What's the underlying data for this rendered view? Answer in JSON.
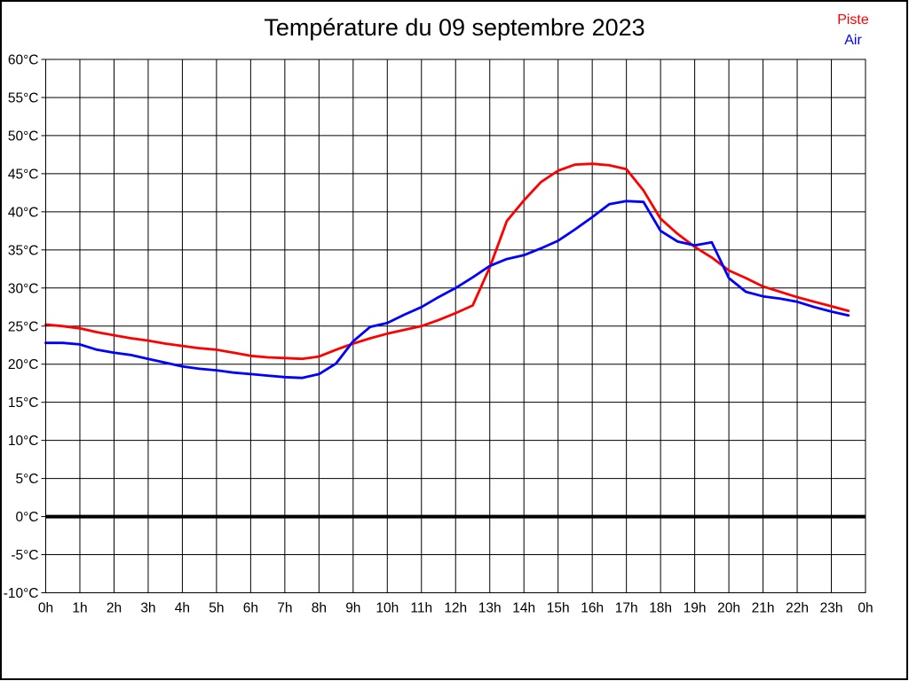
{
  "title": "Température du 09 septembre 2023",
  "legend": {
    "items": [
      {
        "label": "Piste",
        "color": "#ff0000"
      },
      {
        "label": "Air",
        "color": "#0000ff"
      }
    ]
  },
  "chart_data": {
    "type": "line",
    "title": "Température du 09 septembre 2023",
    "xlabel": "",
    "ylabel": "",
    "grid": true,
    "legend_position": "top-right",
    "xlim": [
      0,
      24
    ],
    "ylim": [
      -10,
      60
    ],
    "x_gridline_every_hours": 1,
    "x_tick_labels": [
      "0h",
      "1h",
      "2h",
      "3h",
      "4h",
      "5h",
      "6h",
      "7h",
      "8h",
      "9h",
      "10h",
      "11h",
      "12h",
      "13h",
      "14h",
      "15h",
      "16h",
      "17h",
      "18h",
      "19h",
      "20h",
      "21h",
      "22h",
      "23h",
      "0h"
    ],
    "y_ticks": [
      60,
      55,
      50,
      45,
      40,
      35,
      30,
      25,
      20,
      15,
      10,
      5,
      0,
      -5,
      -10
    ],
    "y_tick_labels": [
      "60°C",
      "55°C",
      "50°C",
      "45°C",
      "40°C",
      "35°C",
      "30°C",
      "25°C",
      "20°C",
      "15°C",
      "10°C",
      "5°C",
      "0°C",
      "-5°C",
      "-10°C"
    ],
    "zero_line_value": 0,
    "x": [
      0,
      0.5,
      1,
      1.5,
      2,
      2.5,
      3,
      3.5,
      4,
      4.5,
      5,
      5.5,
      6,
      6.5,
      7,
      7.5,
      8,
      8.5,
      9,
      9.5,
      10,
      10.5,
      11,
      11.5,
      12,
      12.5,
      13,
      13.5,
      14,
      14.5,
      15,
      15.5,
      16,
      16.5,
      17,
      17.5,
      18,
      18.5,
      19,
      19.5,
      20,
      20.5,
      21,
      21.5,
      22,
      22.5,
      23,
      23.5
    ],
    "series": [
      {
        "name": "Piste",
        "color": "#ff0000",
        "values": [
          25.2,
          25.0,
          24.7,
          24.2,
          23.8,
          23.4,
          23.1,
          22.7,
          22.4,
          22.1,
          21.9,
          21.5,
          21.1,
          20.9,
          20.8,
          20.7,
          21.0,
          21.9,
          22.7,
          23.4,
          24.0,
          24.5,
          25.0,
          25.8,
          26.7,
          27.7,
          32.7,
          38.8,
          41.5,
          43.9,
          45.4,
          46.2,
          46.3,
          46.1,
          45.6,
          42.8,
          39.1,
          37.1,
          35.4,
          34.0,
          32.3,
          31.3,
          30.2,
          29.5,
          28.8,
          28.2,
          27.6,
          27.0
        ]
      },
      {
        "name": "Air",
        "color": "#0000ff",
        "values": [
          22.8,
          22.8,
          22.6,
          21.9,
          21.5,
          21.2,
          20.7,
          20.2,
          19.7,
          19.4,
          19.2,
          18.9,
          18.7,
          18.5,
          18.3,
          18.2,
          18.7,
          20.1,
          23.0,
          24.9,
          25.4,
          26.5,
          27.5,
          28.8,
          30.0,
          31.4,
          32.9,
          33.8,
          34.3,
          35.2,
          36.2,
          37.7,
          39.3,
          41.0,
          41.4,
          41.3,
          37.5,
          36.1,
          35.6,
          36.0,
          31.3,
          29.5,
          28.9,
          28.6,
          28.2,
          27.5,
          26.9,
          26.4
        ]
      }
    ]
  }
}
